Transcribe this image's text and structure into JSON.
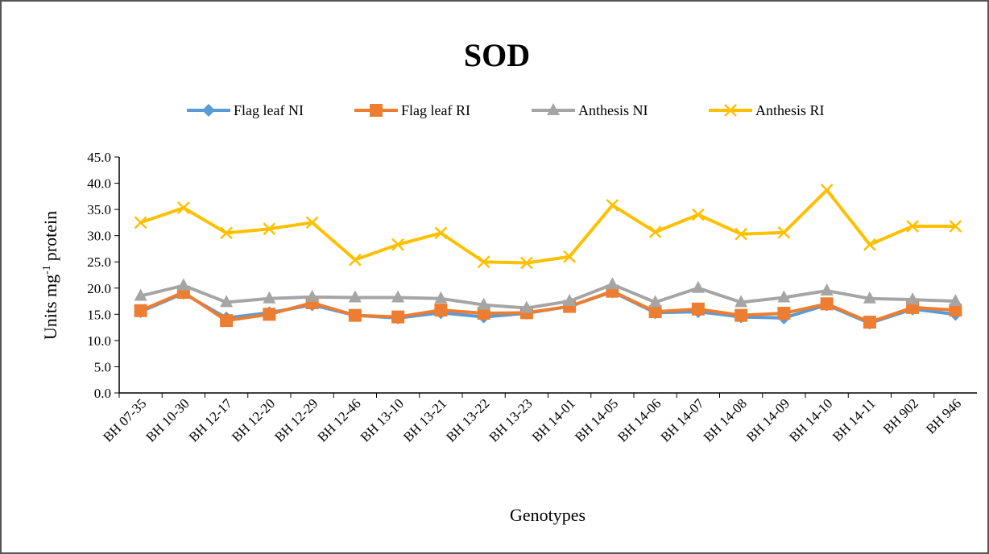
{
  "chart_data": {
    "type": "line",
    "title": "SOD",
    "x_label": "Genotypes",
    "y_label_parts": [
      "Units mg",
      "-1",
      "protein"
    ],
    "categories": [
      "BH 07-35",
      "BH 10-30",
      "BH 12-17",
      "BH 12-20",
      "BH 12-29",
      "BH 12-46",
      "BH 13-10",
      "BH 13-21",
      "BH 13-22",
      "BH 13-23",
      "BH 14-01",
      "BH 14-05",
      "BH 14-06",
      "BH 14-07",
      "BH 14-08",
      "BH 14-09",
      "BH 14-10",
      "BH 14-11",
      "BH 902",
      "BH 946"
    ],
    "series": [
      {
        "name": "Flag leaf NI",
        "color": "#5b9bd5",
        "marker": "diamond",
        "values": [
          15.5,
          19.0,
          14.3,
          15.3,
          16.8,
          14.8,
          14.3,
          15.3,
          14.5,
          15.2,
          16.5,
          19.3,
          15.3,
          15.5,
          14.5,
          14.3,
          16.8,
          13.3,
          16.0,
          15.0
        ]
      },
      {
        "name": "Flag leaf RI",
        "color": "#ed7d31",
        "marker": "square",
        "values": [
          15.7,
          19.2,
          13.8,
          15.0,
          17.2,
          14.8,
          14.5,
          15.8,
          15.2,
          15.3,
          16.5,
          19.4,
          15.5,
          16.0,
          14.8,
          15.2,
          17.0,
          13.5,
          16.3,
          15.8
        ]
      },
      {
        "name": "Anthesis NI",
        "color": "#a5a5a5",
        "marker": "triangle",
        "values": [
          18.5,
          20.5,
          17.3,
          18.0,
          18.3,
          18.2,
          18.2,
          18.0,
          16.8,
          16.2,
          17.5,
          20.7,
          17.3,
          20.0,
          17.3,
          18.2,
          19.5,
          18.0,
          17.8,
          17.5
        ]
      },
      {
        "name": "Anthesis RI",
        "color": "#ffc000",
        "marker": "x",
        "values": [
          32.5,
          35.3,
          30.5,
          31.3,
          32.5,
          25.4,
          28.3,
          30.5,
          25.0,
          24.8,
          26.0,
          35.8,
          30.7,
          34.0,
          30.3,
          30.6,
          38.7,
          28.3,
          31.8,
          31.8
        ]
      }
    ],
    "ylim": [
      0,
      45
    ],
    "yticks": [
      {
        "value": 0,
        "label": "0.0"
      },
      {
        "value": 5,
        "label": "5.0"
      },
      {
        "value": 10,
        "label": "10.0"
      },
      {
        "value": 15,
        "label": "15.0"
      },
      {
        "value": 20,
        "label": "20.0"
      },
      {
        "value": 25,
        "label": "25.0"
      },
      {
        "value": 30,
        "label": "30.0"
      },
      {
        "value": 35,
        "label": "35.0"
      },
      {
        "value": 40,
        "label": "40.0"
      },
      {
        "value": 45,
        "label": "45.0"
      }
    ],
    "legend": "top",
    "grid": false
  }
}
